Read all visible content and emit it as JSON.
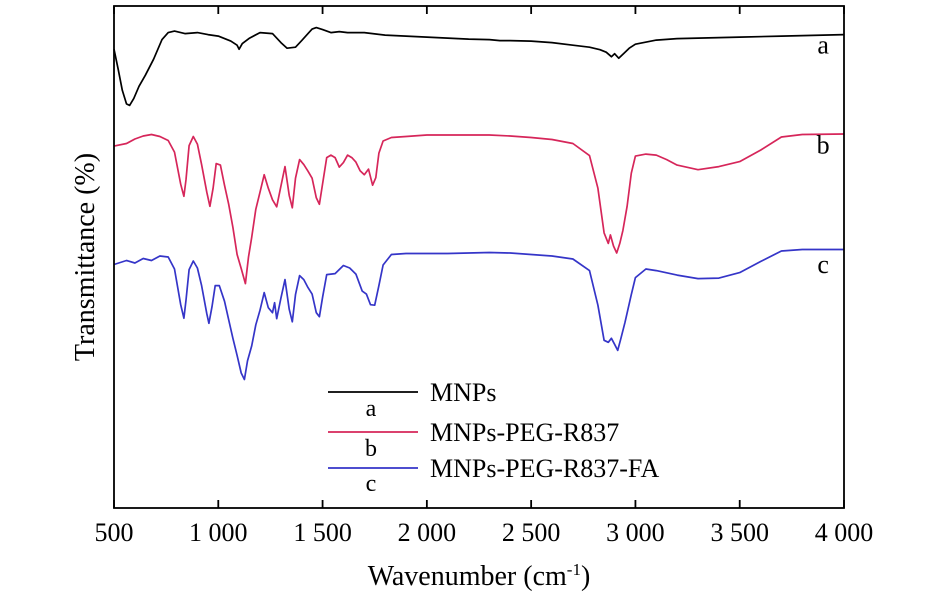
{
  "chart_data": {
    "type": "line",
    "title": "",
    "xlabel": "Wavenumber (cm",
    "xlabel_sup": "-1",
    "xlabel_close": ")",
    "ylabel": "Transmittance (%)",
    "xlim": [
      500,
      4000
    ],
    "ylim": [
      0,
      100
    ],
    "grid": false,
    "legend_position": "bottom-center",
    "x_ticks": [
      500,
      1000,
      1500,
      2000,
      2500,
      3000,
      3500,
      4000
    ],
    "x_tick_labels": [
      "500",
      "1 000",
      "1 500",
      "2 000",
      "2 500",
      "3 000",
      "3 500",
      "4 000"
    ],
    "series": [
      {
        "name": "MNPs",
        "letter": "a",
        "curve_label": "a",
        "color": "#000000",
        "points": [
          [
            500,
            91.4
          ],
          [
            520,
            87.4
          ],
          [
            540,
            83.2
          ],
          [
            560,
            80.5
          ],
          [
            575,
            80.2
          ],
          [
            595,
            81.6
          ],
          [
            620,
            84.0
          ],
          [
            650,
            86.2
          ],
          [
            690,
            89.4
          ],
          [
            730,
            93.3
          ],
          [
            760,
            94.7
          ],
          [
            790,
            95.0
          ],
          [
            840,
            94.5
          ],
          [
            900,
            94.7
          ],
          [
            950,
            94.3
          ],
          [
            1000,
            94.0
          ],
          [
            1060,
            93.0
          ],
          [
            1090,
            92.2
          ],
          [
            1100,
            91.4
          ],
          [
            1115,
            92.5
          ],
          [
            1150,
            93.6
          ],
          [
            1200,
            94.7
          ],
          [
            1260,
            94.5
          ],
          [
            1300,
            92.7
          ],
          [
            1330,
            91.6
          ],
          [
            1370,
            91.8
          ],
          [
            1400,
            93.1
          ],
          [
            1430,
            94.5
          ],
          [
            1450,
            95.4
          ],
          [
            1470,
            95.7
          ],
          [
            1500,
            95.3
          ],
          [
            1540,
            94.7
          ],
          [
            1580,
            94.9
          ],
          [
            1620,
            94.7
          ],
          [
            1700,
            94.7
          ],
          [
            1800,
            94.2
          ],
          [
            1900,
            94.0
          ],
          [
            2000,
            93.8
          ],
          [
            2100,
            93.6
          ],
          [
            2200,
            93.4
          ],
          [
            2300,
            93.3
          ],
          [
            2350,
            93.1
          ],
          [
            2400,
            93.1
          ],
          [
            2500,
            93.0
          ],
          [
            2600,
            92.7
          ],
          [
            2700,
            92.2
          ],
          [
            2780,
            91.8
          ],
          [
            2830,
            91.3
          ],
          [
            2860,
            90.8
          ],
          [
            2885,
            89.9
          ],
          [
            2900,
            90.5
          ],
          [
            2920,
            89.6
          ],
          [
            2945,
            90.6
          ],
          [
            2970,
            91.6
          ],
          [
            3000,
            92.4
          ],
          [
            3100,
            93.2
          ],
          [
            3200,
            93.5
          ],
          [
            3300,
            93.6
          ],
          [
            3500,
            93.8
          ],
          [
            3700,
            94.0
          ],
          [
            3900,
            94.2
          ],
          [
            4000,
            94.3
          ]
        ]
      },
      {
        "name": "MNPs-PEG-R837",
        "letter": "b",
        "curve_label": "b",
        "color": "#d6265a",
        "points": [
          [
            500,
            72.1
          ],
          [
            560,
            72.6
          ],
          [
            600,
            73.5
          ],
          [
            640,
            74.1
          ],
          [
            680,
            74.4
          ],
          [
            720,
            74.0
          ],
          [
            760,
            73.2
          ],
          [
            790,
            70.9
          ],
          [
            820,
            64.5
          ],
          [
            835,
            62.1
          ],
          [
            845,
            65.4
          ],
          [
            860,
            72.2
          ],
          [
            880,
            74.0
          ],
          [
            900,
            72.5
          ],
          [
            920,
            68.4
          ],
          [
            945,
            62.9
          ],
          [
            960,
            60.1
          ],
          [
            975,
            63.7
          ],
          [
            990,
            68.6
          ],
          [
            1010,
            68.3
          ],
          [
            1030,
            64.3
          ],
          [
            1050,
            60.5
          ],
          [
            1070,
            55.9
          ],
          [
            1090,
            50.5
          ],
          [
            1110,
            47.7
          ],
          [
            1130,
            44.7
          ],
          [
            1145,
            50.0
          ],
          [
            1160,
            53.9
          ],
          [
            1180,
            59.5
          ],
          [
            1200,
            62.9
          ],
          [
            1220,
            66.4
          ],
          [
            1240,
            63.7
          ],
          [
            1260,
            61.4
          ],
          [
            1280,
            60.0
          ],
          [
            1300,
            64.1
          ],
          [
            1320,
            68.0
          ],
          [
            1340,
            62.3
          ],
          [
            1355,
            59.8
          ],
          [
            1370,
            65.7
          ],
          [
            1390,
            69.4
          ],
          [
            1410,
            68.4
          ],
          [
            1430,
            67.1
          ],
          [
            1450,
            65.7
          ],
          [
            1470,
            61.8
          ],
          [
            1485,
            60.5
          ],
          [
            1500,
            64.6
          ],
          [
            1520,
            69.8
          ],
          [
            1540,
            70.3
          ],
          [
            1560,
            69.8
          ],
          [
            1580,
            67.9
          ],
          [
            1600,
            68.8
          ],
          [
            1620,
            70.3
          ],
          [
            1640,
            69.8
          ],
          [
            1660,
            68.9
          ],
          [
            1680,
            67.2
          ],
          [
            1700,
            66.4
          ],
          [
            1720,
            67.5
          ],
          [
            1740,
            64.3
          ],
          [
            1755,
            65.8
          ],
          [
            1770,
            70.7
          ],
          [
            1790,
            73.1
          ],
          [
            1830,
            73.8
          ],
          [
            1900,
            74.0
          ],
          [
            2000,
            74.3
          ],
          [
            2100,
            74.3
          ],
          [
            2200,
            74.3
          ],
          [
            2300,
            74.3
          ],
          [
            2400,
            74.1
          ],
          [
            2500,
            73.8
          ],
          [
            2600,
            73.4
          ],
          [
            2700,
            72.6
          ],
          [
            2780,
            70.2
          ],
          [
            2820,
            63.7
          ],
          [
            2850,
            54.8
          ],
          [
            2870,
            52.7
          ],
          [
            2880,
            54.4
          ],
          [
            2895,
            52.2
          ],
          [
            2910,
            50.8
          ],
          [
            2925,
            52.7
          ],
          [
            2940,
            55.3
          ],
          [
            2960,
            60.1
          ],
          [
            2980,
            66.7
          ],
          [
            3000,
            70.1
          ],
          [
            3050,
            70.5
          ],
          [
            3100,
            70.3
          ],
          [
            3150,
            69.4
          ],
          [
            3200,
            68.3
          ],
          [
            3300,
            67.4
          ],
          [
            3400,
            68.0
          ],
          [
            3500,
            69.0
          ],
          [
            3600,
            71.3
          ],
          [
            3700,
            73.9
          ],
          [
            3800,
            74.4
          ],
          [
            4000,
            74.5
          ]
        ]
      },
      {
        "name": "MNPs-PEG-R837-FA",
        "letter": "c",
        "curve_label": "c",
        "color": "#3535c8",
        "points": [
          [
            500,
            48.5
          ],
          [
            560,
            49.3
          ],
          [
            600,
            48.8
          ],
          [
            640,
            49.7
          ],
          [
            680,
            49.3
          ],
          [
            720,
            50.2
          ],
          [
            760,
            50.0
          ],
          [
            790,
            47.6
          ],
          [
            820,
            40.5
          ],
          [
            835,
            37.8
          ],
          [
            845,
            41.4
          ],
          [
            860,
            47.5
          ],
          [
            880,
            49.2
          ],
          [
            900,
            47.8
          ],
          [
            920,
            44.3
          ],
          [
            945,
            38.7
          ],
          [
            955,
            36.8
          ],
          [
            970,
            40.1
          ],
          [
            985,
            44.3
          ],
          [
            1005,
            44.3
          ],
          [
            1030,
            41.2
          ],
          [
            1050,
            37.5
          ],
          [
            1070,
            33.8
          ],
          [
            1090,
            30.4
          ],
          [
            1110,
            26.9
          ],
          [
            1125,
            25.6
          ],
          [
            1140,
            29.3
          ],
          [
            1160,
            32.3
          ],
          [
            1180,
            36.5
          ],
          [
            1200,
            39.4
          ],
          [
            1220,
            42.9
          ],
          [
            1240,
            39.9
          ],
          [
            1260,
            38.9
          ],
          [
            1270,
            40.9
          ],
          [
            1280,
            37.7
          ],
          [
            1300,
            41.8
          ],
          [
            1320,
            45.5
          ],
          [
            1340,
            39.6
          ],
          [
            1355,
            37.1
          ],
          [
            1370,
            42.5
          ],
          [
            1390,
            46.3
          ],
          [
            1410,
            45.5
          ],
          [
            1430,
            43.9
          ],
          [
            1450,
            42.6
          ],
          [
            1470,
            38.9
          ],
          [
            1485,
            38.1
          ],
          [
            1500,
            42.0
          ],
          [
            1520,
            46.5
          ],
          [
            1560,
            46.7
          ],
          [
            1600,
            48.3
          ],
          [
            1630,
            47.8
          ],
          [
            1660,
            46.6
          ],
          [
            1690,
            43.2
          ],
          [
            1710,
            42.6
          ],
          [
            1730,
            40.5
          ],
          [
            1750,
            40.4
          ],
          [
            1770,
            44.3
          ],
          [
            1790,
            48.4
          ],
          [
            1830,
            50.5
          ],
          [
            1900,
            50.7
          ],
          [
            2000,
            50.7
          ],
          [
            2100,
            50.7
          ],
          [
            2200,
            50.8
          ],
          [
            2300,
            50.9
          ],
          [
            2400,
            50.8
          ],
          [
            2500,
            50.5
          ],
          [
            2600,
            50.2
          ],
          [
            2700,
            49.6
          ],
          [
            2780,
            47.3
          ],
          [
            2820,
            40.4
          ],
          [
            2850,
            33.4
          ],
          [
            2870,
            33.0
          ],
          [
            2885,
            33.8
          ],
          [
            2900,
            32.6
          ],
          [
            2915,
            31.4
          ],
          [
            2930,
            33.7
          ],
          [
            2950,
            37.0
          ],
          [
            2980,
            42.5
          ],
          [
            3000,
            45.9
          ],
          [
            3050,
            47.6
          ],
          [
            3100,
            47.3
          ],
          [
            3200,
            46.4
          ],
          [
            3300,
            45.7
          ],
          [
            3400,
            45.8
          ],
          [
            3500,
            46.9
          ],
          [
            3600,
            49.1
          ],
          [
            3700,
            51.2
          ],
          [
            3800,
            51.5
          ],
          [
            4000,
            51.5
          ]
        ]
      }
    ],
    "curve_labels_at": [
      {
        "letter": "a",
        "y": 90.5
      },
      {
        "letter": "b",
        "y": 70.6
      },
      {
        "letter": "c",
        "y": 46.8
      }
    ]
  }
}
